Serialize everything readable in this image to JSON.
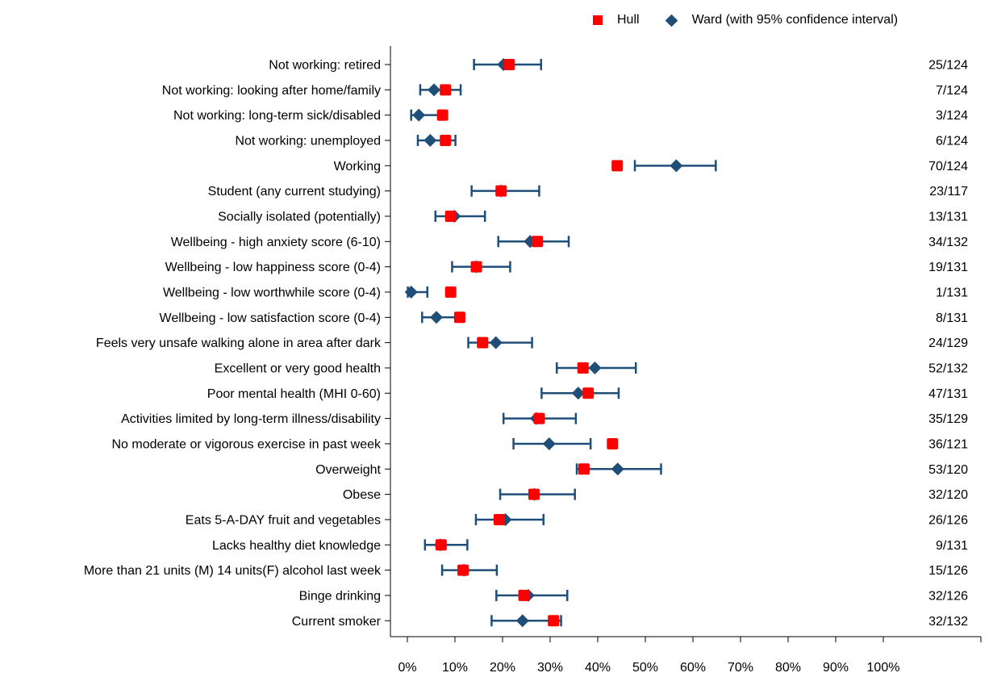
{
  "legend": {
    "hull_label": "Hull",
    "ward_label": "Ward (with 95% confidence interval)"
  },
  "colors": {
    "hull": "#ff0000",
    "ward": "#1f4e79",
    "axis": "#000000"
  },
  "chart_data": {
    "type": "scatter",
    "title": "",
    "xlabel": "",
    "ylabel": "",
    "xlim": [
      0,
      100
    ],
    "x_ticks": [
      "0%",
      "10%",
      "20%",
      "30%",
      "40%",
      "50%",
      "60%",
      "70%",
      "80%",
      "90%",
      "100%"
    ],
    "grid": false,
    "legend_position": "top-right",
    "categories": [
      "Not working: retired",
      "Not working: looking after home/family",
      "Not working: long-term sick/disabled",
      "Not working: unemployed",
      "Working",
      "Student (any current studying)",
      "Socially isolated (potentially)",
      "Wellbeing - high anxiety score (6-10)",
      "Wellbeing - low happiness score (0-4)",
      "Wellbeing - low worthwhile score (0-4)",
      "Wellbeing - low satisfaction score (0-4)",
      "Feels very unsafe walking alone in area after dark",
      "Excellent or very good health",
      "Poor mental health (MHI 0-60)",
      "Activities limited by long-term illness/disability",
      "No moderate or vigorous exercise in past week",
      "Overweight",
      "Obese",
      "Eats 5-A-DAY fruit and vegetables",
      "Lacks healthy diet knowledge",
      "More than 21 units (M) 14 units(F) alcohol last week",
      "Binge drinking",
      "Current smoker"
    ],
    "counts": [
      "25/124",
      "7/124",
      "3/124",
      "6/124",
      "70/124",
      "23/117",
      "13/131",
      "34/132",
      "19/131",
      "1/131",
      "8/131",
      "24/129",
      "52/132",
      "47/131",
      "35/129",
      "36/121",
      "53/120",
      "32/120",
      "26/126",
      "9/131",
      "15/126",
      "32/126",
      "32/132"
    ],
    "series": [
      {
        "name": "Ward (with 95% confidence interval)",
        "marker": "diamond",
        "values": [
          20.2,
          5.6,
          2.4,
          4.8,
          56.5,
          19.7,
          9.9,
          25.8,
          14.5,
          0.8,
          6.1,
          18.6,
          39.4,
          35.9,
          27.1,
          29.8,
          44.2,
          26.7,
          20.6,
          6.9,
          11.9,
          25.4,
          24.2
        ],
        "ci_low": [
          14.0,
          2.7,
          0.8,
          2.2,
          47.8,
          13.5,
          5.9,
          19.1,
          9.4,
          0.1,
          3.1,
          12.8,
          31.4,
          28.2,
          20.2,
          22.3,
          35.6,
          19.5,
          14.4,
          3.7,
          7.3,
          18.7,
          17.7
        ],
        "ci_high": [
          28.1,
          11.2,
          6.9,
          10.1,
          64.8,
          27.7,
          16.3,
          33.9,
          21.6,
          4.2,
          11.5,
          26.2,
          48.0,
          44.4,
          35.4,
          38.5,
          53.3,
          35.2,
          28.6,
          12.6,
          18.8,
          33.6,
          32.3
        ]
      },
      {
        "name": "Hull",
        "marker": "square",
        "values": [
          21.4,
          8.0,
          7.4,
          8.0,
          44.1,
          19.7,
          9.1,
          27.3,
          14.5,
          9.1,
          11.0,
          15.8,
          36.9,
          38.0,
          27.7,
          43.1,
          37.1,
          26.6,
          19.3,
          7.1,
          11.7,
          24.5,
          30.7
        ]
      }
    ]
  }
}
